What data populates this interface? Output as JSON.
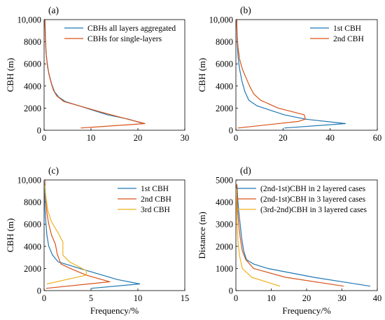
{
  "chart_data": [
    {
      "panel": "(a)",
      "type": "line",
      "xlabel": "",
      "ylabel": "CBH (m)",
      "xlim": [
        0,
        30
      ],
      "ylim": [
        0,
        10000
      ],
      "xticks": [
        0,
        10,
        20,
        30
      ],
      "yticks": [
        0,
        2000,
        4000,
        6000,
        8000,
        10000
      ],
      "ytick_labels": [
        "0",
        "2000",
        "4000",
        "6000",
        "8000",
        "10,000"
      ],
      "grid": false,
      "legend": "top-right",
      "series": [
        {
          "name": "CBHs all layers aggregated",
          "color": "#1f77b4",
          "x": [
            21.2,
            18,
            13.5,
            4.5,
            3.1,
            2.2,
            1.6,
            1.1,
            0.75,
            0.55,
            0.4,
            0.3,
            0.22,
            0.15
          ],
          "y": [
            600,
            1000,
            1400,
            2600,
            3000,
            3500,
            4200,
            5000,
            5700,
            6500,
            7000,
            8000,
            9000,
            10000
          ]
        },
        {
          "name": "CBHs for single-layers",
          "color": "#d95319",
          "x": [
            7.8,
            21.5,
            17.8,
            12.5,
            4.2,
            2.7,
            2.0,
            1.5,
            1.0,
            0.7,
            0.5,
            0.38,
            0.28,
            0.2
          ],
          "y": [
            200,
            600,
            1000,
            1600,
            2600,
            3100,
            3600,
            4300,
            5100,
            6000,
            6600,
            7500,
            8500,
            10000
          ]
        }
      ]
    },
    {
      "panel": "(b)",
      "type": "line",
      "xlabel": "",
      "ylabel": "CBH (m)",
      "xlim": [
        0,
        60
      ],
      "ylim": [
        0,
        10000
      ],
      "xticks": [
        0,
        20,
        40,
        60
      ],
      "yticks": [
        0,
        2000,
        4000,
        6000,
        8000,
        10000
      ],
      "ytick_labels": [
        "0",
        "2000",
        "4000",
        "6000",
        "8000",
        "10,000"
      ],
      "grid": false,
      "legend": "top-right",
      "series": [
        {
          "name": "1st CBH",
          "color": "#1f77b4",
          "x": [
            20.5,
            46.5,
            29.5,
            20.5,
            9.0,
            5.5,
            3.8,
            2.5,
            1.5,
            0.9,
            0.55,
            0.35
          ],
          "y": [
            200,
            600,
            1000,
            1400,
            2200,
            2700,
            3500,
            4500,
            5600,
            6700,
            8000,
            10000
          ]
        },
        {
          "name": "2nd CBH",
          "color": "#d95319",
          "x": [
            0.8,
            26.5,
            29.5,
            29.0,
            18.0,
            10.5,
            7.5,
            5.8,
            4.2,
            2.8,
            1.6,
            0.9,
            0.5,
            0.3
          ],
          "y": [
            200,
            800,
            1000,
            1400,
            2000,
            2700,
            3300,
            4000,
            4800,
            5500,
            6400,
            7500,
            8700,
            10000
          ]
        }
      ]
    },
    {
      "panel": "(c)",
      "type": "line",
      "xlabel": "Frequency/%",
      "ylabel": "CBH (m)",
      "xlim": [
        0,
        15
      ],
      "ylim": [
        0,
        10000
      ],
      "xticks": [
        0,
        5,
        10,
        15
      ],
      "yticks": [
        0,
        2000,
        4000,
        6000,
        8000,
        10000
      ],
      "ytick_labels": [
        "0",
        "2000",
        "4000",
        "6000",
        "8000",
        "10,000"
      ],
      "grid": false,
      "legend": "top-right",
      "series": [
        {
          "name": "1st CBH",
          "color": "#1f77b4",
          "x": [
            5.0,
            10.2,
            7.8,
            3.8,
            1.5,
            0.9,
            0.5,
            0.3,
            0.2,
            0.12,
            0.08,
            0.05,
            0.03
          ],
          "y": [
            200,
            600,
            1000,
            2000,
            2600,
            3200,
            4000,
            5000,
            6000,
            7000,
            8000,
            9000,
            10000
          ]
        },
        {
          "name": "2nd CBH",
          "color": "#d95319",
          "x": [
            0.2,
            7.0,
            4.5,
            2.8,
            1.8,
            1.4,
            1.2,
            0.8,
            0.5,
            0.3,
            0.15,
            0.08
          ],
          "y": [
            200,
            800,
            1400,
            2000,
            2400,
            3300,
            4200,
            5000,
            6000,
            7000,
            8500,
            10000
          ]
        },
        {
          "name": "3rd CBH",
          "color": "#edb120",
          "x": [
            0.3,
            4.5,
            4.5,
            2.7,
            2.0,
            2.0,
            1.5,
            0.8,
            0.4,
            0.2,
            0.08
          ],
          "y": [
            600,
            1400,
            1800,
            2600,
            3200,
            4400,
            5200,
            6200,
            7200,
            8400,
            9500
          ]
        }
      ]
    },
    {
      "panel": "(d)",
      "type": "line",
      "xlabel": "Frequency/%",
      "ylabel": "Distance (m)",
      "xlim": [
        0,
        40
      ],
      "ylim": [
        0,
        5000
      ],
      "xticks": [
        0,
        10,
        20,
        30,
        40
      ],
      "yticks": [
        0,
        1000,
        2000,
        3000,
        4000,
        5000
      ],
      "ytick_labels": [
        "0",
        "1000",
        "2000",
        "3000",
        "4000",
        "5000"
      ],
      "grid": false,
      "legend": "top-right",
      "series": [
        {
          "name": "(2nd-1st)CBH in 2 layered cases",
          "color": "#1f77b4",
          "x": [
            38,
            22,
            9,
            5,
            3,
            2.2,
            1.6,
            1.2,
            0.8,
            0.5,
            0.3
          ],
          "y": [
            200,
            600,
            1000,
            1200,
            1400,
            1800,
            2400,
            3000,
            3600,
            4200,
            4800
          ]
        },
        {
          "name": "(2nd-1st)CBH in 3 layered cases",
          "color": "#d95319",
          "x": [
            30.5,
            14,
            5,
            2.8,
            1.8,
            1.2,
            0.8,
            0.5,
            0.3,
            0.2
          ],
          "y": [
            200,
            600,
            1000,
            1400,
            1800,
            2400,
            3000,
            3600,
            4200,
            4800
          ]
        },
        {
          "name": "(3rd-2nd)CBH in 3 layered cases",
          "color": "#edb120",
          "x": [
            12.5,
            4.5,
            1.8,
            1.0,
            0.6,
            0.35,
            0.2,
            0.1
          ],
          "y": [
            200,
            600,
            1000,
            1600,
            2200,
            3000,
            3800,
            4600
          ]
        }
      ]
    }
  ]
}
